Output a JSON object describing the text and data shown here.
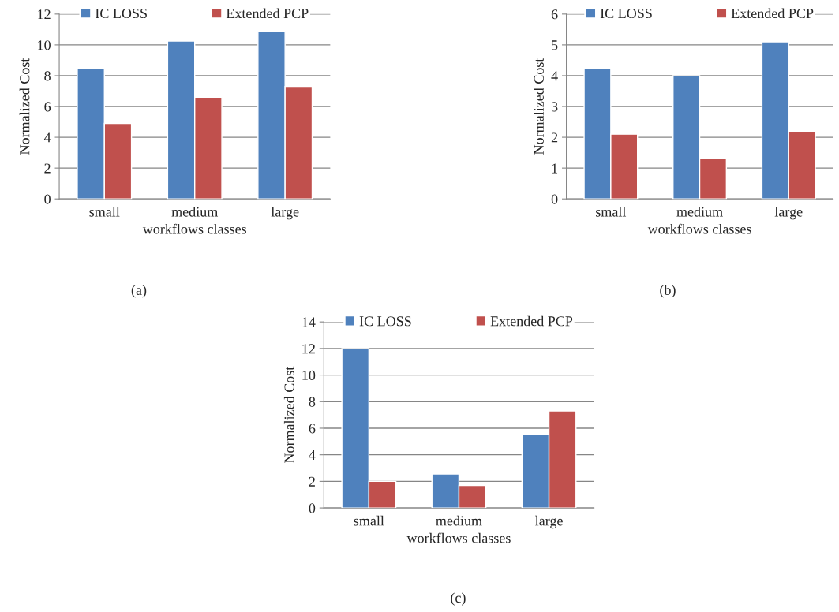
{
  "chart_data": [
    {
      "type": "bar",
      "categories": [
        "small",
        "medium",
        "large"
      ],
      "xlabel": "workflows classes",
      "ylabel": "Normalized Cost",
      "ylim": [
        0,
        12
      ],
      "yticks": [
        0,
        2,
        4,
        6,
        8,
        10,
        12
      ],
      "grid": "y",
      "legend": "top",
      "annotations": [
        "(a)"
      ],
      "series": [
        {
          "name": "IC LOSS",
          "color": "#4f81bd",
          "values": [
            8.5,
            10.25,
            10.9
          ]
        },
        {
          "name": "Extended PCP",
          "color": "#c0504d",
          "values": [
            4.9,
            6.6,
            7.3
          ]
        }
      ]
    },
    {
      "type": "bar",
      "categories": [
        "small",
        "medium",
        "large"
      ],
      "xlabel": "workflows classes",
      "ylabel": "Normalized Cost",
      "ylim": [
        0,
        6
      ],
      "yticks": [
        0,
        1,
        2,
        3,
        4,
        5,
        6
      ],
      "grid": "y",
      "legend": "top",
      "annotations": [
        "(b)"
      ],
      "series": [
        {
          "name": "IC LOSS",
          "color": "#4f81bd",
          "values": [
            4.25,
            4.0,
            5.1
          ]
        },
        {
          "name": "Extended PCP",
          "color": "#c0504d",
          "values": [
            2.1,
            1.3,
            2.2
          ]
        }
      ]
    },
    {
      "type": "bar",
      "categories": [
        "small",
        "medium",
        "large"
      ],
      "xlabel": "workflows classes",
      "ylabel": "Normalized Cost",
      "ylim": [
        0,
        14
      ],
      "yticks": [
        0,
        2,
        4,
        6,
        8,
        10,
        12,
        14
      ],
      "grid": "y",
      "legend": "top",
      "annotations": [
        "(c)"
      ],
      "series": [
        {
          "name": "IC LOSS",
          "color": "#4f81bd",
          "values": [
            12.0,
            2.55,
            5.5
          ]
        },
        {
          "name": "Extended PCP",
          "color": "#c0504d",
          "values": [
            2.0,
            1.7,
            7.3
          ]
        }
      ]
    }
  ]
}
